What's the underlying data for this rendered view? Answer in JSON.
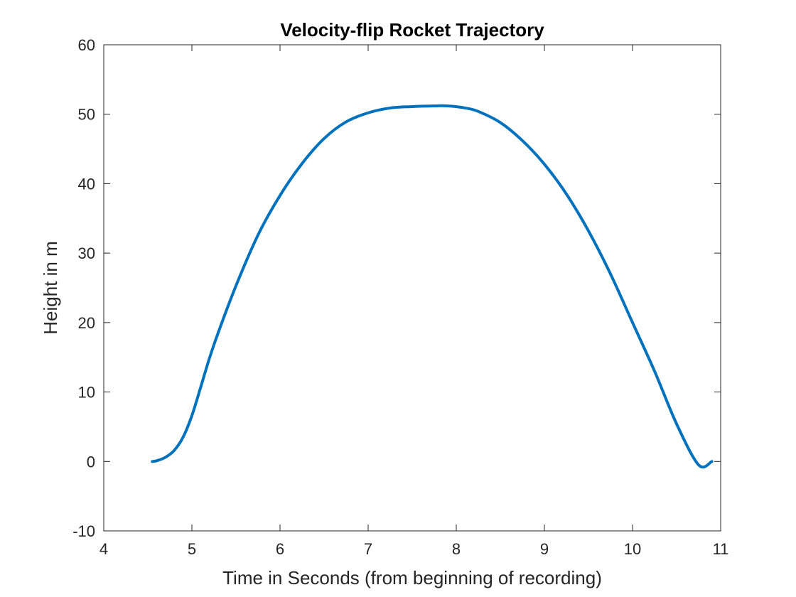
{
  "chart_data": {
    "type": "line",
    "title": "Velocity-flip Rocket Trajectory",
    "xlabel": "Time in Seconds (from beginning of recording)",
    "ylabel": "Height in m",
    "xlim": [
      4,
      11
    ],
    "ylim": [
      -10,
      60
    ],
    "xticks": [
      4,
      5,
      6,
      7,
      8,
      9,
      10,
      11
    ],
    "yticks": [
      -10,
      0,
      10,
      20,
      30,
      40,
      50,
      60
    ],
    "xtick_labels": [
      "4",
      "5",
      "6",
      "7",
      "8",
      "9",
      "10",
      "11"
    ],
    "ytick_labels": [
      "-10",
      "0",
      "10",
      "20",
      "30",
      "40",
      "50",
      "60"
    ],
    "grid": false,
    "box": true,
    "series": [
      {
        "color": "#0072BD",
        "x": [
          4.55,
          4.6,
          4.7,
          4.8,
          4.9,
          5.0,
          5.1,
          5.2,
          5.3,
          5.5,
          5.75,
          6.0,
          6.25,
          6.5,
          6.75,
          7.0,
          7.25,
          7.5,
          7.75,
          7.9,
          8.1,
          8.25,
          8.5,
          8.75,
          9.0,
          9.25,
          9.5,
          9.75,
          10.0,
          10.25,
          10.5,
          10.75,
          10.9
        ],
        "y": [
          0.0,
          0.1,
          0.6,
          1.6,
          3.5,
          6.6,
          10.7,
          14.9,
          18.6,
          25.3,
          32.6,
          38.3,
          42.9,
          46.5,
          48.9,
          50.2,
          50.9,
          51.1,
          51.2,
          51.2,
          50.9,
          50.4,
          48.8,
          46.2,
          42.8,
          38.5,
          33.2,
          27.0,
          20.0,
          13.0,
          5.4,
          -0.5,
          0.0
        ]
      }
    ]
  }
}
